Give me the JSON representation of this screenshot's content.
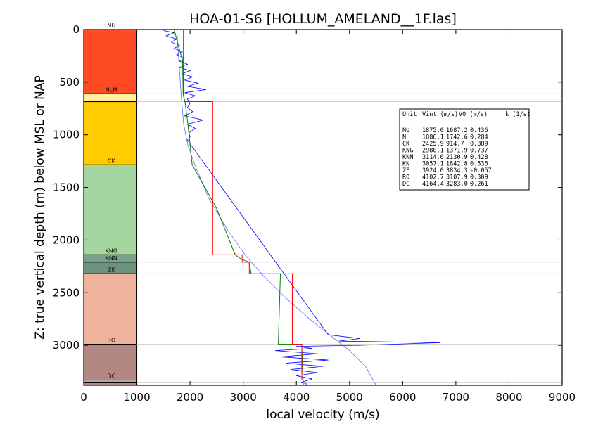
{
  "chart_data": {
    "type": "line",
    "title": "HOA-01-S6 [HOLLUM_AMELAND__1F.las]",
    "xlabel": "local velocity (m/s)",
    "ylabel": "Z: true vertical depth (m) below MSL or NAP",
    "xlim": [
      0,
      9000
    ],
    "ylim": [
      3380,
      0
    ],
    "y_inverted": true,
    "x_ticks": [
      0,
      1000,
      2000,
      3000,
      4000,
      5000,
      6000,
      7000,
      8000,
      9000
    ],
    "y_ticks": [
      0,
      500,
      1000,
      1500,
      2000,
      2500,
      3000
    ],
    "grid": false,
    "units": [
      {
        "name": "NU",
        "top": 0,
        "base": 610,
        "color": "#ff4a26",
        "label": "NU"
      },
      {
        "name": "N",
        "top": 610,
        "base": 685,
        "color": "#fff0a0",
        "label": "NLM"
      },
      {
        "name": "CK",
        "top": 685,
        "base": 1285,
        "color": "#ffcc00",
        "label": ""
      },
      {
        "name": "CK2",
        "top": 1285,
        "base": 2140,
        "color": "#a6d6a0",
        "label": "CK"
      },
      {
        "name": "KNG",
        "top": 2140,
        "base": 2210,
        "color": "#78a08a",
        "label": "KNG"
      },
      {
        "name": "KNN",
        "top": 2210,
        "base": 2320,
        "color": "#6e9280",
        "label": "KNN"
      },
      {
        "name": "ZE",
        "top": 2320,
        "base": 2990,
        "color": "#efb39b",
        "label": "ZE"
      },
      {
        "name": "RO",
        "top": 2990,
        "base": 3330,
        "color": "#b38782",
        "label": "RO"
      },
      {
        "name": "DC",
        "top": 3330,
        "base": 3350,
        "color": "#c0a0a0",
        "label": "DC"
      },
      {
        "name": "DC2",
        "top": 3350,
        "base": 3380,
        "color": "#b38782",
        "label": ""
      }
    ],
    "interval_velocity": {
      "name": "Vint",
      "color": "#ff0000",
      "steps": [
        {
          "top": 0,
          "base": 610,
          "v": 1875.0
        },
        {
          "top": 610,
          "base": 685,
          "v": 1886.1
        },
        {
          "top": 685,
          "base": 1285,
          "v": 2425.9
        },
        {
          "top": 1285,
          "base": 2140,
          "v": 2425.9
        },
        {
          "top": 2140,
          "base": 2210,
          "v": 2980.1
        },
        {
          "top": 2210,
          "base": 2320,
          "v": 3114.6
        },
        {
          "top": 2320,
          "base": 2990,
          "v": 3924.0
        },
        {
          "top": 2990,
          "base": 3330,
          "v": 4102.7
        },
        {
          "top": 3330,
          "base": 3380,
          "v": 4164.4
        }
      ]
    },
    "v0k_model": {
      "name": "V0 + k z",
      "color": "#008000",
      "points": [
        [
          1700,
          0
        ],
        [
          1860,
          300
        ],
        [
          1870,
          610
        ],
        [
          1880,
          640
        ],
        [
          1905,
          685
        ],
        [
          1960,
          900
        ],
        [
          2040,
          1285
        ],
        [
          2500,
          1700
        ],
        [
          2850,
          2140
        ],
        [
          2960,
          2180
        ],
        [
          3110,
          2210
        ],
        [
          3150,
          2320
        ],
        [
          3700,
          2320
        ],
        [
          3660,
          2990
        ],
        [
          4100,
          2990
        ],
        [
          4130,
          3380
        ]
      ]
    },
    "regional_curve": {
      "name": "regional fit",
      "color": "#6666ff",
      "points": [
        [
          1750,
          0
        ],
        [
          1790,
          300
        ],
        [
          1830,
          600
        ],
        [
          1880,
          900
        ],
        [
          1960,
          1100
        ],
        [
          2100,
          1300
        ],
        [
          2350,
          1600
        ],
        [
          2700,
          1900
        ],
        [
          3050,
          2150
        ],
        [
          3400,
          2350
        ],
        [
          3800,
          2550
        ],
        [
          4250,
          2750
        ],
        [
          4700,
          2930
        ],
        [
          5000,
          3050
        ],
        [
          5300,
          3200
        ],
        [
          5500,
          3380
        ]
      ]
    },
    "sonic_log": {
      "name": "log velocity",
      "color": "#0000ff",
      "points": [
        [
          1500,
          10
        ],
        [
          1700,
          30
        ],
        [
          1550,
          60
        ],
        [
          1750,
          90
        ],
        [
          1650,
          120
        ],
        [
          1800,
          150
        ],
        [
          1700,
          180
        ],
        [
          1850,
          210
        ],
        [
          1750,
          240
        ],
        [
          1900,
          270
        ],
        [
          1800,
          300
        ],
        [
          1950,
          330
        ],
        [
          1800,
          360
        ],
        [
          2000,
          390
        ],
        [
          1850,
          420
        ],
        [
          2050,
          450
        ],
        [
          1900,
          480
        ],
        [
          2150,
          510
        ],
        [
          1950,
          540
        ],
        [
          2300,
          570
        ],
        [
          1900,
          600
        ],
        [
          2100,
          630
        ],
        [
          1950,
          660
        ],
        [
          2000,
          700
        ],
        [
          1950,
          740
        ],
        [
          2050,
          780
        ],
        [
          1900,
          820
        ],
        [
          2250,
          860
        ],
        [
          1950,
          900
        ],
        [
          2100,
          940
        ],
        [
          1980,
          980
        ],
        [
          2000,
          1020
        ],
        [
          1950,
          1050
        ],
        [
          4600,
          2900
        ],
        [
          5200,
          2935
        ],
        [
          4800,
          2960
        ],
        [
          6700,
          2975
        ],
        [
          5200,
          3000
        ],
        [
          4000,
          3010
        ],
        [
          4300,
          3030
        ],
        [
          3600,
          3050
        ],
        [
          4400,
          3080
        ],
        [
          3700,
          3110
        ],
        [
          4600,
          3140
        ],
        [
          3800,
          3170
        ],
        [
          4500,
          3200
        ],
        [
          3900,
          3230
        ],
        [
          4400,
          3260
        ],
        [
          4000,
          3290
        ],
        [
          4300,
          3320
        ],
        [
          4100,
          3350
        ],
        [
          4200,
          3370
        ]
      ]
    },
    "legend": {
      "position": "upper-right",
      "header": [
        "Unit",
        "Vint (m/s)",
        "V0 (m/s)",
        "k (1/s)"
      ],
      "rows": [
        [
          "NU",
          "1875.0",
          "1687.2",
          "0.436"
        ],
        [
          "N",
          "1886.1",
          "1742.6",
          "0.284"
        ],
        [
          "CK",
          "2425.9",
          "914.7",
          "0.889"
        ],
        [
          "KNG",
          "2980.1",
          "1371.9",
          "0.737"
        ],
        [
          "KNN",
          "3114.6",
          "2130.9",
          "0.428"
        ],
        [
          "KN",
          "3057.1",
          "1842.8",
          "0.536"
        ],
        [
          "ZE",
          "3924.0",
          "3834.3",
          "-0.057"
        ],
        [
          "RO",
          "4102.7",
          "3107.9",
          "0.309"
        ],
        [
          "DC",
          "4164.4",
          "3283.0",
          "0.261"
        ]
      ]
    }
  }
}
